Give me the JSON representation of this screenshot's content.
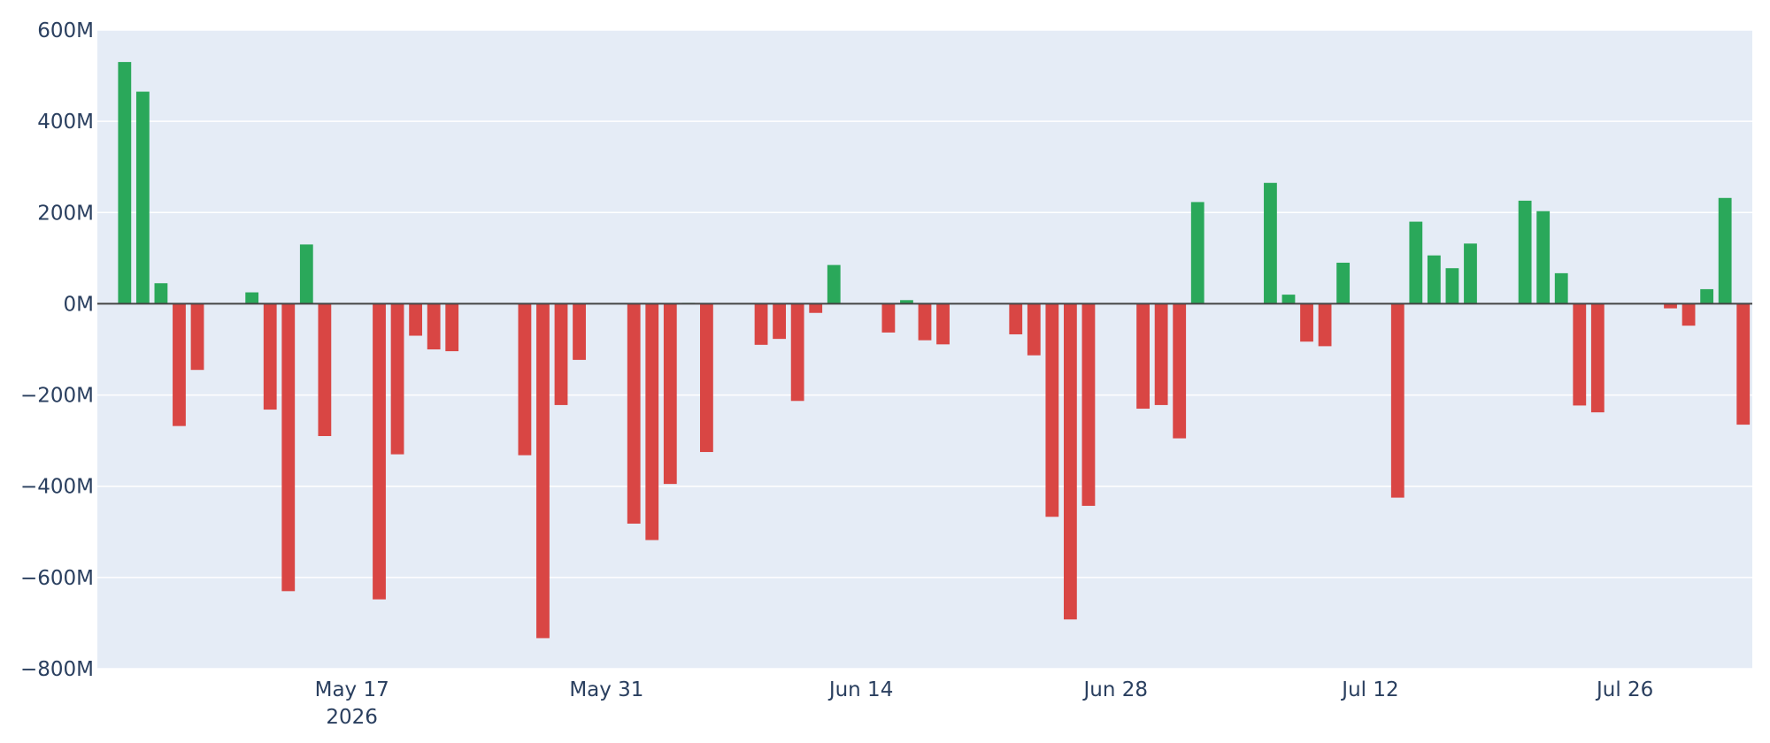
{
  "chart_data": {
    "type": "bar",
    "title": "",
    "xlabel": "",
    "ylabel": "",
    "ylim": [
      -800000000,
      600000000
    ],
    "xlim": [
      "2026-05-03",
      "2026-08-01"
    ],
    "yticks": [
      {
        "value": 600000000,
        "label": "600M"
      },
      {
        "value": 400000000,
        "label": "400M"
      },
      {
        "value": 200000000,
        "label": "200M"
      },
      {
        "value": 0,
        "label": "0M"
      },
      {
        "value": -200000000,
        "label": "−200M"
      },
      {
        "value": -400000000,
        "label": "−400M"
      },
      {
        "value": -600000000,
        "label": "−600M"
      },
      {
        "value": -800000000,
        "label": "−800M"
      }
    ],
    "xticks": [
      {
        "date": "2026-05-17",
        "label": "May 17",
        "sublabel": "2026"
      },
      {
        "date": "2026-05-31",
        "label": "May 31",
        "sublabel": ""
      },
      {
        "date": "2026-06-14",
        "label": "Jun 14",
        "sublabel": ""
      },
      {
        "date": "2026-06-28",
        "label": "Jun 28",
        "sublabel": ""
      },
      {
        "date": "2026-07-12",
        "label": "Jul 12",
        "sublabel": ""
      },
      {
        "date": "2026-07-26",
        "label": "Jul 26",
        "sublabel": ""
      }
    ],
    "grid": true,
    "legend": "none",
    "colors": {
      "positive": "#2aa85a",
      "negative": "#d94644",
      "plot_bg": "#e5ecf6",
      "grid": "#ffffff",
      "zero_line": "#444444",
      "text": "#2a3f5f"
    },
    "points": [
      {
        "x": "2026-05-04",
        "y": 530000000
      },
      {
        "x": "2026-05-05",
        "y": 465000000
      },
      {
        "x": "2026-05-06",
        "y": 45000000
      },
      {
        "x": "2026-05-07",
        "y": -268000000
      },
      {
        "x": "2026-05-08",
        "y": -145000000
      },
      {
        "x": "2026-05-11",
        "y": 25000000
      },
      {
        "x": "2026-05-12",
        "y": -232000000
      },
      {
        "x": "2026-05-13",
        "y": -630000000
      },
      {
        "x": "2026-05-14",
        "y": 130000000
      },
      {
        "x": "2026-05-15",
        "y": -290000000
      },
      {
        "x": "2026-05-18",
        "y": -648000000
      },
      {
        "x": "2026-05-19",
        "y": -330000000
      },
      {
        "x": "2026-05-20",
        "y": -70000000
      },
      {
        "x": "2026-05-21",
        "y": -100000000
      },
      {
        "x": "2026-05-22",
        "y": -104000000
      },
      {
        "x": "2026-05-26",
        "y": -332000000
      },
      {
        "x": "2026-05-27",
        "y": -733000000
      },
      {
        "x": "2026-05-28",
        "y": -222000000
      },
      {
        "x": "2026-05-29",
        "y": -123000000
      },
      {
        "x": "2026-06-01",
        "y": -482000000
      },
      {
        "x": "2026-06-02",
        "y": -518000000
      },
      {
        "x": "2026-06-03",
        "y": -395000000
      },
      {
        "x": "2026-06-04",
        "y": 2000000
      },
      {
        "x": "2026-06-05",
        "y": -325000000
      },
      {
        "x": "2026-06-08",
        "y": -90000000
      },
      {
        "x": "2026-06-09",
        "y": -77000000
      },
      {
        "x": "2026-06-10",
        "y": -213000000
      },
      {
        "x": "2026-06-11",
        "y": -20000000
      },
      {
        "x": "2026-06-12",
        "y": 85000000
      },
      {
        "x": "2026-06-15",
        "y": -63000000
      },
      {
        "x": "2026-06-16",
        "y": 8000000
      },
      {
        "x": "2026-06-17",
        "y": -80000000
      },
      {
        "x": "2026-06-18",
        "y": -89000000
      },
      {
        "x": "2026-06-22",
        "y": -67000000
      },
      {
        "x": "2026-06-23",
        "y": -113000000
      },
      {
        "x": "2026-06-24",
        "y": -467000000
      },
      {
        "x": "2026-06-25",
        "y": -692000000
      },
      {
        "x": "2026-06-26",
        "y": -443000000
      },
      {
        "x": "2026-06-29",
        "y": -230000000
      },
      {
        "x": "2026-06-30",
        "y": -222000000
      },
      {
        "x": "2026-07-01",
        "y": -295000000
      },
      {
        "x": "2026-07-02",
        "y": 223000000
      },
      {
        "x": "2026-07-06",
        "y": 265000000
      },
      {
        "x": "2026-07-07",
        "y": 20000000
      },
      {
        "x": "2026-07-08",
        "y": -83000000
      },
      {
        "x": "2026-07-09",
        "y": -93000000
      },
      {
        "x": "2026-07-10",
        "y": 90000000
      },
      {
        "x": "2026-07-13",
        "y": -425000000
      },
      {
        "x": "2026-07-14",
        "y": 180000000
      },
      {
        "x": "2026-07-15",
        "y": 106000000
      },
      {
        "x": "2026-07-16",
        "y": 78000000
      },
      {
        "x": "2026-07-17",
        "y": 132000000
      },
      {
        "x": "2026-07-20",
        "y": 226000000
      },
      {
        "x": "2026-07-21",
        "y": 203000000
      },
      {
        "x": "2026-07-22",
        "y": 67000000
      },
      {
        "x": "2026-07-23",
        "y": -223000000
      },
      {
        "x": "2026-07-24",
        "y": -238000000
      },
      {
        "x": "2026-07-28",
        "y": -10000000
      },
      {
        "x": "2026-07-29",
        "y": -48000000
      },
      {
        "x": "2026-07-30",
        "y": 32000000
      },
      {
        "x": "2026-07-31",
        "y": 232000000
      },
      {
        "x": "2026-08-01",
        "y": -265000000
      }
    ]
  }
}
